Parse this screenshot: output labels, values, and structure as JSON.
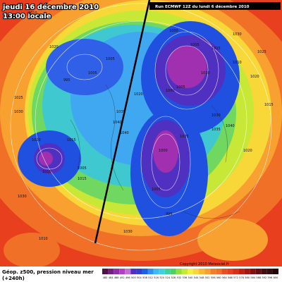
{
  "header": {
    "date": "jeudi 16 décembre 2010",
    "time": "13:00 locale",
    "run": "Run ECMWF 12Z du lundi 6 décembre 2010"
  },
  "footer": {
    "title": "Géop. z500, pression niveau mer",
    "lead": "(+240h)",
    "copyright": "Copyright 2010 Meteociel.fr"
  },
  "map": {
    "pressure_labels": [
      "1010",
      "1020",
      "1005",
      "995",
      "1005",
      "1025",
      "1030",
      "1000",
      "1005",
      "1010",
      "1000",
      "1005",
      "1015",
      "1010",
      "1020",
      "1030",
      "1040",
      "1040",
      "1035",
      "1020",
      "1000",
      "1005",
      "1025",
      "995",
      "1035",
      "1040",
      "1030",
      "1020",
      "1015",
      "1025",
      "1015",
      "1020",
      "1010",
      "1030",
      "1010",
      "1015",
      "1005",
      "1030"
    ]
  },
  "scale": {
    "labels": [
      "480",
      "484",
      "488",
      "492",
      "496",
      "500",
      "504",
      "508",
      "512",
      "516",
      "520",
      "524",
      "528",
      "532",
      "536",
      "540",
      "544",
      "548",
      "552",
      "556",
      "560",
      "564",
      "568",
      "572",
      "576",
      "580",
      "584",
      "588",
      "592",
      "596",
      "600"
    ]
  }
}
